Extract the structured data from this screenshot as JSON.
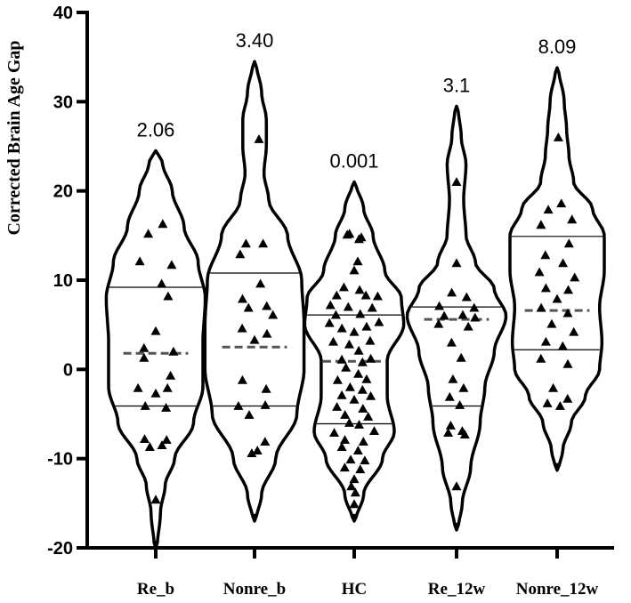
{
  "chart_data": {
    "type": "violin",
    "title": "",
    "xlabel": "",
    "ylabel": "Corrected Brain Age Gap",
    "ylim": [
      -20,
      40
    ],
    "yticks": [
      -20,
      -10,
      0,
      10,
      20,
      30,
      40
    ],
    "categories": [
      "Re_b",
      "Nonre_b",
      "HC",
      "Re_12w",
      "Nonre_12w"
    ],
    "annotations": [
      "2.06",
      "3.40",
      "0.001",
      "3.1",
      "8.09"
    ],
    "groups": [
      {
        "name": "Re_b",
        "annotation": "2.06",
        "median": 1.8,
        "q1": -4.1,
        "q3": 9.2,
        "min": -20,
        "max": 24.5,
        "density": [
          [
            -20,
            0.3
          ],
          [
            -16,
            1
          ],
          [
            -13,
            2
          ],
          [
            -10,
            4
          ],
          [
            -6,
            8
          ],
          [
            -2,
            10
          ],
          [
            3,
            10
          ],
          [
            8,
            10.5
          ],
          [
            12,
            9
          ],
          [
            16,
            6
          ],
          [
            20,
            3.5
          ],
          [
            23,
            1.5
          ],
          [
            24.5,
            0.3
          ]
        ],
        "points": [
          [
            0.2,
            16.3
          ],
          [
            -0.2,
            15.2
          ],
          [
            -0.3,
            12.1
          ],
          [
            0.3,
            11.7
          ],
          [
            0.1,
            9.6
          ],
          [
            0.2,
            8.2
          ],
          [
            0,
            4.3
          ],
          [
            -0.2,
            2.4
          ],
          [
            0.3,
            2.0
          ],
          [
            -0.2,
            1.3
          ],
          [
            0.25,
            -0.7
          ],
          [
            -0.3,
            -2.1
          ],
          [
            0.2,
            -2.1
          ],
          [
            0,
            -2.7
          ],
          [
            -0.2,
            -4.1
          ],
          [
            0.2,
            -4.3
          ],
          [
            -0.3,
            -7.8
          ],
          [
            0.3,
            -7.9
          ],
          [
            -0.2,
            -8.7
          ],
          [
            0.2,
            -8.5
          ],
          [
            0,
            -14.6
          ]
        ]
      },
      {
        "name": "Nonre_b",
        "annotation": "3.40",
        "median": 2.5,
        "q1": -4.1,
        "q3": 10.8,
        "min": -17,
        "max": 34.5,
        "density": [
          [
            -17,
            0.3
          ],
          [
            -14,
            1.5
          ],
          [
            -10,
            4.5
          ],
          [
            -5,
            9
          ],
          [
            0,
            10.5
          ],
          [
            5,
            10.5
          ],
          [
            10,
            10
          ],
          [
            15,
            7
          ],
          [
            19,
            3
          ],
          [
            22,
            2
          ],
          [
            25,
            2.5
          ],
          [
            28,
            2.5
          ],
          [
            31,
            1.5
          ],
          [
            34.5,
            0.3
          ]
        ],
        "points": [
          [
            0.3,
            25.8
          ],
          [
            -0.2,
            14.1
          ],
          [
            0.2,
            14.1
          ],
          [
            -0.3,
            12.9
          ],
          [
            0.1,
            9.6
          ],
          [
            -0.2,
            7.9
          ],
          [
            0.2,
            7.1
          ],
          [
            -0.1,
            6.9
          ],
          [
            0.3,
            6.1
          ],
          [
            -0.2,
            4.6
          ],
          [
            0.2,
            4.0
          ],
          [
            0,
            3.3
          ],
          [
            -0.2,
            -1.2
          ],
          [
            0.2,
            -2.2
          ],
          [
            -0.3,
            -4.1
          ],
          [
            0.2,
            -4.0
          ],
          [
            -0.1,
            -5.1
          ],
          [
            0.3,
            -8.1
          ],
          [
            -0.1,
            -9.4
          ],
          [
            0.1,
            -9.1
          ]
        ]
      },
      {
        "name": "HC",
        "annotation": "0.001",
        "median": 0.9,
        "q1": -6.1,
        "q3": 6.1,
        "min": -17,
        "max": 21,
        "density": [
          [
            -17,
            0.3
          ],
          [
            -14,
            2
          ],
          [
            -10,
            6
          ],
          [
            -7,
            8.5
          ],
          [
            -3,
            7
          ],
          [
            1,
            7
          ],
          [
            5,
            10.5
          ],
          [
            8,
            10
          ],
          [
            11,
            6.5
          ],
          [
            15,
            4
          ],
          [
            18,
            2
          ],
          [
            21,
            0.3
          ]
        ],
        "points": [
          [
            -0.3,
            15.1
          ],
          [
            0.3,
            14.8
          ],
          [
            -0.2,
            15.2
          ],
          [
            0.2,
            14.6
          ],
          [
            0.1,
            12.1
          ],
          [
            0,
            11.1
          ],
          [
            -0.2,
            9.2
          ],
          [
            0.1,
            8.9
          ],
          [
            -0.3,
            8.3
          ],
          [
            0.2,
            8.3
          ],
          [
            0.4,
            8.2
          ],
          [
            -0.4,
            7.2
          ],
          [
            -0.1,
            7.0
          ],
          [
            0.3,
            6.9
          ],
          [
            -0.3,
            6.1
          ],
          [
            0.1,
            6.2
          ],
          [
            -0.4,
            5.2
          ],
          [
            0.4,
            5.3
          ],
          [
            -0.2,
            4.6
          ],
          [
            0.2,
            4.8
          ],
          [
            0,
            4.2
          ],
          [
            -0.4,
            3.1
          ],
          [
            0.3,
            3.2
          ],
          [
            -0.1,
            2.8
          ],
          [
            0.1,
            2.1
          ],
          [
            -0.3,
            1.1
          ],
          [
            0.4,
            1.2
          ],
          [
            0.2,
            0.8
          ],
          [
            -0.2,
            0.2
          ],
          [
            0.1,
            -0.5
          ],
          [
            -0.4,
            -1.2
          ],
          [
            0.3,
            -1.1
          ],
          [
            -0.1,
            -2.0
          ],
          [
            0.2,
            -2.3
          ],
          [
            -0.3,
            -2.9
          ],
          [
            0.4,
            -3.0
          ],
          [
            0,
            -3.4
          ],
          [
            -0.4,
            -4.2
          ],
          [
            0.2,
            -4.4
          ],
          [
            -0.2,
            -5.1
          ],
          [
            0.3,
            -5.3
          ],
          [
            -0.1,
            -6.0
          ],
          [
            0.1,
            -6.2
          ],
          [
            -0.4,
            -7.1
          ],
          [
            0.4,
            -6.9
          ],
          [
            -0.2,
            -7.9
          ],
          [
            0.2,
            -8.1
          ],
          [
            -0.3,
            -8.7
          ],
          [
            0.1,
            -9.1
          ],
          [
            -0.1,
            -10.1
          ],
          [
            0.3,
            -10.2
          ],
          [
            -0.3,
            -11.0
          ],
          [
            0.2,
            -11.2
          ],
          [
            0,
            -12.3
          ],
          [
            -0.2,
            -13.1
          ],
          [
            0.1,
            -13.8
          ],
          [
            0,
            -15.1
          ]
        ]
      },
      {
        "name": "Re_12w",
        "annotation": "3.1",
        "median": 5.6,
        "q1": -4.1,
        "q3": 7.0,
        "min": -18,
        "max": 29.5,
        "density": [
          [
            -18,
            0.3
          ],
          [
            -15,
            1.2
          ],
          [
            -11,
            3
          ],
          [
            -6,
            5
          ],
          [
            -2,
            6
          ],
          [
            2,
            8
          ],
          [
            6,
            10.5
          ],
          [
            9,
            8
          ],
          [
            12,
            4
          ],
          [
            15,
            2
          ],
          [
            19,
            1.5
          ],
          [
            23,
            2
          ],
          [
            26,
            1
          ],
          [
            29.5,
            0.3
          ]
        ],
        "points": [
          [
            0,
            21.0
          ],
          [
            0,
            11.9
          ],
          [
            -0.1,
            8.6
          ],
          [
            0.2,
            8.1
          ],
          [
            -0.3,
            7.1
          ],
          [
            0.3,
            6.9
          ],
          [
            -0.2,
            6.0
          ],
          [
            0.1,
            6.1
          ],
          [
            0.3,
            5.8
          ],
          [
            -0.3,
            5.1
          ],
          [
            0.2,
            4.8
          ],
          [
            -0.1,
            3.0
          ],
          [
            0.1,
            1.3
          ],
          [
            -0.1,
            -1.1
          ],
          [
            0.2,
            -2.1
          ],
          [
            -0.2,
            -3.1
          ],
          [
            0.1,
            -4.0
          ],
          [
            -0.2,
            -6.3
          ],
          [
            0.2,
            -6.9
          ],
          [
            -0.3,
            -7.1
          ],
          [
            0.3,
            -7.3
          ],
          [
            0,
            -13.1
          ]
        ]
      },
      {
        "name": "Nonre_12w",
        "annotation": "8.09",
        "median": 6.6,
        "q1": 2.2,
        "q3": 14.9,
        "min": -11.3,
        "max": 33.8,
        "density": [
          [
            -11.3,
            0.3
          ],
          [
            -9,
            1.2
          ],
          [
            -6,
            3
          ],
          [
            -3,
            6
          ],
          [
            0,
            9
          ],
          [
            3,
            9.5
          ],
          [
            7,
            9
          ],
          [
            11,
            10
          ],
          [
            15,
            10
          ],
          [
            18,
            7.5
          ],
          [
            21,
            3.5
          ],
          [
            24,
            2.5
          ],
          [
            27,
            2
          ],
          [
            30,
            1.5
          ],
          [
            33.8,
            0.3
          ]
        ],
        "points": [
          [
            0.1,
            26.0
          ],
          [
            0.1,
            18.6
          ],
          [
            -0.2,
            17.9
          ],
          [
            0.3,
            16.8
          ],
          [
            -0.3,
            16.2
          ],
          [
            0.2,
            14.1
          ],
          [
            -0.2,
            12.8
          ],
          [
            0.1,
            11.9
          ],
          [
            -0.3,
            10.9
          ],
          [
            0.3,
            10.3
          ],
          [
            -0.2,
            9.1
          ],
          [
            0.2,
            8.9
          ],
          [
            0,
            7.9
          ],
          [
            -0.3,
            6.9
          ],
          [
            0.2,
            6.3
          ],
          [
            -0.1,
            5.1
          ],
          [
            0.3,
            4.2
          ],
          [
            -0.2,
            3.1
          ],
          [
            0.1,
            2.6
          ],
          [
            -0.3,
            1.2
          ],
          [
            0.2,
            0.6
          ],
          [
            -0.1,
            -2.1
          ],
          [
            0.3,
            -3.3
          ],
          [
            -0.3,
            -3.8
          ],
          [
            0.1,
            -4.1
          ]
        ]
      }
    ]
  }
}
